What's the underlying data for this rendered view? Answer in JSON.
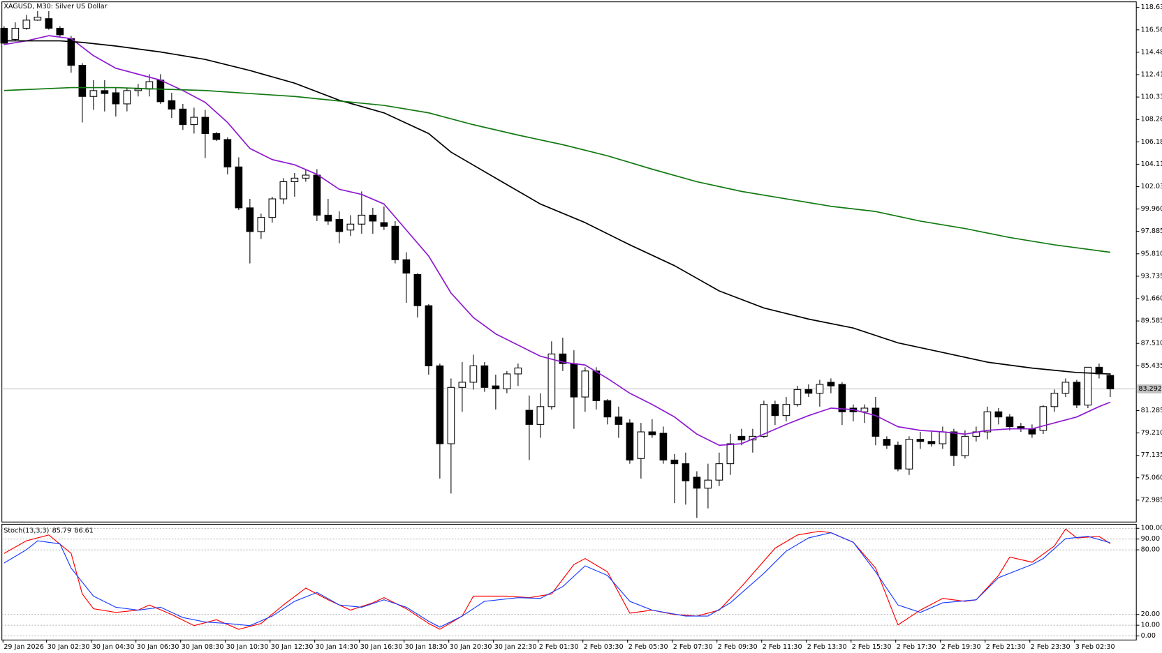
{
  "chart_data": [
    {
      "type": "candlestick",
      "title": "XAGUSD, M30:  Silver US Dollar",
      "categories": [
        "29 Jan 2026",
        null,
        null,
        null,
        null,
        "30 Jan 02:30",
        null,
        null,
        null,
        "30 Jan 04:30",
        null,
        null,
        null,
        "30 Jan 06:30",
        null,
        null,
        null,
        "30 Jan 08:30",
        null,
        null,
        null,
        "30 Jan 10:30",
        null,
        null,
        null,
        "30 Jan 12:30",
        null,
        null,
        null,
        "30 Jan 14:30",
        null,
        null,
        null,
        "30 Jan 16:30",
        null,
        null,
        null,
        "30 Jan 18:30",
        null,
        null,
        null,
        "30 Jan 20:30",
        null,
        null,
        null,
        "30 Jan 22:30",
        null,
        null,
        null,
        "2 Feb 01:30",
        null,
        null,
        null,
        "2 Feb 03:30",
        null,
        null,
        null,
        "2 Feb 05:30",
        null,
        null,
        null,
        "2 Feb 07:30",
        null,
        null,
        null,
        "2 Feb 09:30",
        null,
        null,
        null,
        "2 Feb 11:30",
        null,
        null,
        null,
        "2 Feb 13:30",
        null,
        null,
        null,
        "2 Feb 15:30",
        null,
        null,
        null,
        "2 Feb 17:30",
        null,
        null,
        null,
        "2 Feb 19:30",
        null,
        null,
        null,
        "2 Feb 21:30",
        null,
        null,
        null,
        "2 Feb 23:30",
        null,
        null,
        null,
        "3 Feb 02:30",
        null,
        null
      ],
      "open": [
        116.71,
        115.68,
        116.71,
        117.46,
        117.6,
        116.71,
        115.75,
        113.27,
        110.39,
        110.93,
        110.73,
        109.7,
        110.93,
        111.07,
        111.9,
        110.0,
        109.22,
        107.78,
        108.46,
        106.95,
        106.4,
        103.86,
        100.07,
        97.87,
        99.18,
        100.9,
        102.49,
        102.82,
        103.1,
        99.39,
        99.0,
        98.01,
        98.56,
        99.39,
        98.7,
        98.36,
        95.26,
        93.89,
        91.0,
        85.43,
        78.21,
        83.43,
        83.91,
        85.43,
        83.57,
        83.3,
        84.68,
        81.31,
        80.0,
        81.65,
        86.53,
        85.64,
        82.54,
        84.95,
        82.2,
        80.69,
        80.14,
        76.84,
        79.31,
        79.18,
        76.7,
        76.36,
        75.11,
        74.09,
        74.84,
        76.36,
        78.9,
        78.56,
        78.9,
        81.85,
        80.82,
        81.85,
        83.23,
        82.89,
        83.91,
        83.71,
        81.51,
        81.17,
        81.51,
        78.62,
        78.07,
        75.87,
        78.62,
        78.42,
        78.21,
        79.31,
        77.11,
        78.9,
        79.31,
        81.17,
        80.69,
        79.8,
        79.59,
        79.45,
        81.65,
        82.89,
        83.91,
        81.79,
        85.3,
        84.54
      ],
      "high": [
        116.9,
        117.26,
        117.95,
        118.3,
        118.3,
        116.9,
        116.0,
        113.48,
        111.9,
        111.9,
        111.21,
        111.21,
        111.55,
        112.45,
        112.45,
        110.73,
        109.7,
        109.35,
        109.15,
        107.1,
        106.6,
        104.75,
        100.9,
        99.53,
        101.1,
        102.82,
        103.3,
        103.65,
        103.65,
        100.9,
        99.74,
        99.39,
        101.59,
        100.07,
        100.2,
        98.84,
        95.95,
        94.02,
        91.14,
        85.64,
        84.26,
        85.78,
        86.46,
        85.78,
        84.61,
        84.95,
        85.64,
        82.68,
        82.89,
        87.7,
        88.04,
        86.87,
        85.3,
        85.3,
        82.34,
        81.65,
        80.48,
        80.14,
        80.48,
        79.8,
        77.25,
        77.39,
        75.66,
        76.36,
        77.39,
        79.11,
        79.59,
        79.59,
        82.2,
        82.2,
        82.54,
        83.57,
        83.71,
        84.13,
        84.26,
        83.91,
        81.85,
        81.85,
        82.54,
        78.9,
        78.42,
        78.9,
        79.31,
        79.31,
        79.8,
        79.59,
        79.45,
        79.8,
        81.65,
        81.51,
        80.96,
        80.14,
        80.0,
        81.79,
        83.23,
        84.26,
        84.13,
        85.3,
        85.64,
        84.75
      ],
      "low": [
        115.2,
        115.54,
        116.57,
        117.4,
        116.57,
        115.89,
        112.59,
        107.98,
        109.15,
        109.0,
        108.53,
        109.01,
        110.39,
        110.39,
        109.7,
        108.39,
        107.29,
        106.95,
        104.68,
        106.26,
        103.17,
        99.87,
        94.92,
        97.18,
        98.7,
        100.42,
        101.1,
        102.49,
        98.84,
        98.49,
        96.78,
        97.46,
        97.67,
        97.67,
        98.01,
        94.92,
        91.27,
        89.9,
        84.61,
        74.98,
        73.6,
        81.17,
        83.23,
        83.02,
        81.38,
        82.89,
        83.57,
        76.7,
        78.76,
        81.38,
        84.95,
        79.59,
        81.17,
        81.38,
        80.0,
        78.76,
        76.36,
        74.98,
        78.76,
        76.36,
        72.71,
        72.57,
        71.34,
        72.22,
        74.29,
        75.32,
        78.07,
        77.39,
        78.76,
        79.94,
        80.28,
        81.65,
        82.54,
        81.65,
        82.89,
        79.94,
        80.28,
        80.14,
        78.07,
        77.73,
        75.66,
        75.32,
        77.73,
        77.94,
        77.73,
        76.15,
        76.84,
        78.42,
        78.62,
        80.0,
        79.45,
        79.31,
        78.76,
        79.11,
        81.17,
        82.54,
        81.51,
        81.51,
        84.26,
        82.54
      ],
      "close": [
        115.33,
        116.71,
        117.46,
        117.74,
        116.71,
        116.1,
        113.27,
        110.39,
        110.93,
        110.66,
        109.7,
        110.93,
        111.07,
        111.76,
        109.9,
        109.22,
        107.78,
        108.46,
        106.95,
        106.4,
        103.86,
        100.07,
        97.87,
        99.18,
        100.9,
        102.49,
        102.82,
        103.1,
        99.39,
        98.84,
        97.87,
        98.56,
        99.39,
        98.84,
        98.36,
        95.26,
        94.02,
        91.0,
        85.43,
        78.21,
        83.43,
        83.91,
        85.43,
        83.43,
        83.3,
        84.68,
        85.23,
        80.0,
        81.65,
        86.53,
        85.64,
        82.54,
        84.95,
        82.2,
        80.69,
        80.0,
        76.7,
        79.31,
        79.04,
        76.7,
        76.36,
        74.77,
        74.09,
        74.84,
        76.36,
        78.21,
        78.56,
        78.9,
        81.85,
        80.82,
        81.85,
        83.23,
        82.89,
        83.71,
        83.57,
        81.17,
        81.17,
        81.51,
        78.9,
        78.07,
        75.87,
        78.62,
        78.42,
        78.21,
        79.31,
        77.11,
        78.9,
        79.31,
        81.17,
        80.69,
        79.8,
        79.59,
        79.11,
        81.65,
        82.89,
        83.91,
        81.79,
        85.3,
        84.68,
        83.292
      ],
      "up_color": "#ffffff",
      "down_color": "#000000",
      "overlays": [
        {
          "color": "#8e1ad1",
          "x": [
            0,
            2,
            4,
            6,
            8,
            10,
            12,
            14,
            16,
            18,
            20,
            22,
            24,
            26,
            28,
            30,
            32,
            34,
            36,
            38,
            40,
            42,
            44,
            46,
            48,
            50,
            52,
            54,
            56,
            58,
            60,
            62,
            64,
            66,
            68,
            70,
            72,
            74,
            76,
            78,
            80,
            82,
            84,
            86,
            88,
            90,
            92,
            94,
            96,
            98,
            99
          ],
          "values": [
            115.2,
            115.54,
            116.02,
            115.75,
            114.17,
            113.0,
            112.45,
            111.9,
            110.94,
            109.84,
            107.98,
            105.57,
            104.54,
            104.06,
            103.17,
            101.79,
            101.31,
            100.42,
            98.01,
            95.6,
            92.17,
            89.9,
            88.39,
            87.35,
            86.32,
            85.77,
            85.5,
            84.26,
            82.89,
            81.85,
            80.69,
            79.1,
            78.07,
            78.21,
            79.1,
            80.0,
            80.82,
            81.51,
            81.37,
            80.82,
            79.79,
            79.45,
            79.31,
            79.1,
            79.45,
            79.59,
            79.59,
            80.14,
            80.69,
            81.65,
            82.06
          ]
        },
        {
          "color": "#000000",
          "x": [
            0,
            5,
            7,
            10,
            14,
            18,
            22,
            26,
            30,
            34,
            38,
            40,
            44,
            48,
            52,
            56,
            60,
            64,
            68,
            72,
            76,
            80,
            84,
            88,
            92,
            96,
            99
          ],
          "values": [
            115.54,
            115.54,
            115.4,
            115.06,
            114.51,
            113.82,
            112.79,
            111.62,
            110.04,
            108.87,
            106.95,
            105.23,
            102.82,
            100.42,
            98.7,
            96.64,
            94.71,
            92.37,
            90.79,
            89.76,
            88.93,
            87.56,
            86.67,
            85.77,
            85.22,
            84.81,
            84.67
          ]
        },
        {
          "color": "#137a13",
          "x": [
            0,
            6,
            10,
            14,
            18,
            22,
            26,
            30,
            34,
            38,
            42,
            46,
            50,
            54,
            58,
            62,
            66,
            70,
            74,
            78,
            82,
            86,
            90,
            94,
            99
          ],
          "values": [
            110.94,
            111.21,
            111.21,
            111.07,
            110.94,
            110.66,
            110.39,
            109.97,
            109.56,
            108.87,
            107.77,
            106.81,
            105.92,
            104.89,
            103.65,
            102.49,
            101.59,
            100.9,
            100.21,
            99.73,
            98.84,
            98.15,
            97.32,
            96.64,
            95.95
          ]
        }
      ],
      "current_price": 83.292,
      "xlim": [
        -0.2,
        101.33
      ],
      "ylim": [
        70.99,
        119.12
      ],
      "yticks": [
        118.635,
        {
          "value": 116.56,
          "label": "116.560"
        },
        114.485,
        {
          "value": 112.41,
          "label": "112.410"
        },
        110.335,
        {
          "value": 108.26,
          "label": "108.260"
        },
        106.185,
        {
          "value": 104.11,
          "label": "104.110"
        },
        102.035,
        {
          "value": 99.96,
          "label": "99.960"
        },
        97.885,
        {
          "value": 95.81,
          "label": "95.810"
        },
        93.735,
        {
          "value": 91.66,
          "label": "91.660"
        },
        89.585,
        {
          "value": 87.51,
          "label": "87.510"
        },
        85.435,
        81.285,
        {
          "value": 79.21,
          "label": "79.210"
        },
        77.135,
        {
          "value": 75.06,
          "label": "75.060"
        },
        72.985
      ]
    },
    {
      "type": "line",
      "title": "Stoch(13,3,3)",
      "series": [
        {
          "color": "#ff0000",
          "x": [
            0,
            2,
            4,
            6,
            7,
            8,
            10,
            12,
            13,
            15,
            17,
            19,
            21,
            23,
            25,
            27,
            29,
            31,
            33,
            34,
            36,
            38,
            39,
            41,
            42,
            45,
            47,
            49,
            51,
            52,
            54,
            56,
            58,
            60,
            62,
            64,
            66,
            69,
            71,
            73,
            74,
            76,
            78,
            80,
            82,
            84,
            86,
            87,
            89,
            90,
            92,
            94,
            95,
            96,
            98,
            99
          ],
          "values": [
            76.7,
            88.4,
            93.8,
            76.7,
            39.0,
            25.3,
            21.9,
            24.0,
            28.8,
            19.9,
            9.6,
            15.1,
            6.2,
            11.6,
            28.8,
            44.5,
            33.6,
            24.0,
            30.8,
            35.6,
            25.3,
            11.6,
            6.2,
            18.5,
            37.0,
            37.0,
            35.6,
            39.0,
            66.4,
            71.9,
            59.6,
            21.2,
            24.0,
            19.9,
            18.5,
            24.0,
            45.9,
            81.5,
            93.8,
            97.3,
            95.9,
            87.0,
            63.0,
            10.3,
            24.0,
            34.9,
            32.2,
            33.6,
            56.2,
            73.3,
            68.5,
            83.6,
            99.3,
            91.1,
            92.5,
            85.79
          ]
        },
        {
          "color": "#1a3cff",
          "x": [
            0,
            2,
            3,
            5,
            6,
            8,
            10,
            12,
            14,
            16,
            18,
            20,
            22,
            24,
            26,
            28,
            30,
            32,
            34,
            36,
            38,
            39,
            41,
            43,
            46,
            48,
            50,
            52,
            54,
            56,
            58,
            61,
            63,
            65,
            68,
            70,
            72,
            74,
            76,
            78,
            80,
            82,
            84,
            87,
            89,
            92,
            93,
            95,
            97,
            99
          ],
          "values": [
            67.8,
            80.1,
            88.4,
            85.6,
            63.0,
            37.0,
            26.7,
            24.0,
            26.7,
            17.1,
            13.0,
            11.6,
            9.6,
            18.5,
            32.2,
            40.4,
            28.8,
            26.7,
            33.6,
            26.7,
            13.7,
            8.2,
            18.5,
            32.2,
            35.6,
            34.9,
            45.9,
            65.1,
            56.2,
            32.2,
            24.0,
            18.5,
            18.5,
            30.8,
            58.2,
            78.8,
            91.1,
            95.9,
            87.0,
            59.6,
            28.8,
            21.9,
            30.8,
            33.6,
            54.1,
            66.4,
            71.9,
            90.4,
            92.5,
            86.61
          ]
        }
      ],
      "xlim": [
        -0.2,
        101.33
      ],
      "ylim": [
        -3.4,
        104.1
      ],
      "yticks": [
        {
          "value": 100,
          "label": "100.00"
        },
        {
          "value": 90,
          "label": "90.00"
        },
        {
          "value": 80,
          "label": "80.00"
        },
        {
          "value": 20,
          "label": "20.00"
        },
        {
          "value": 10,
          "label": "10.00"
        },
        {
          "value": 0,
          "label": "0.00"
        }
      ],
      "grid": true
    }
  ]
}
